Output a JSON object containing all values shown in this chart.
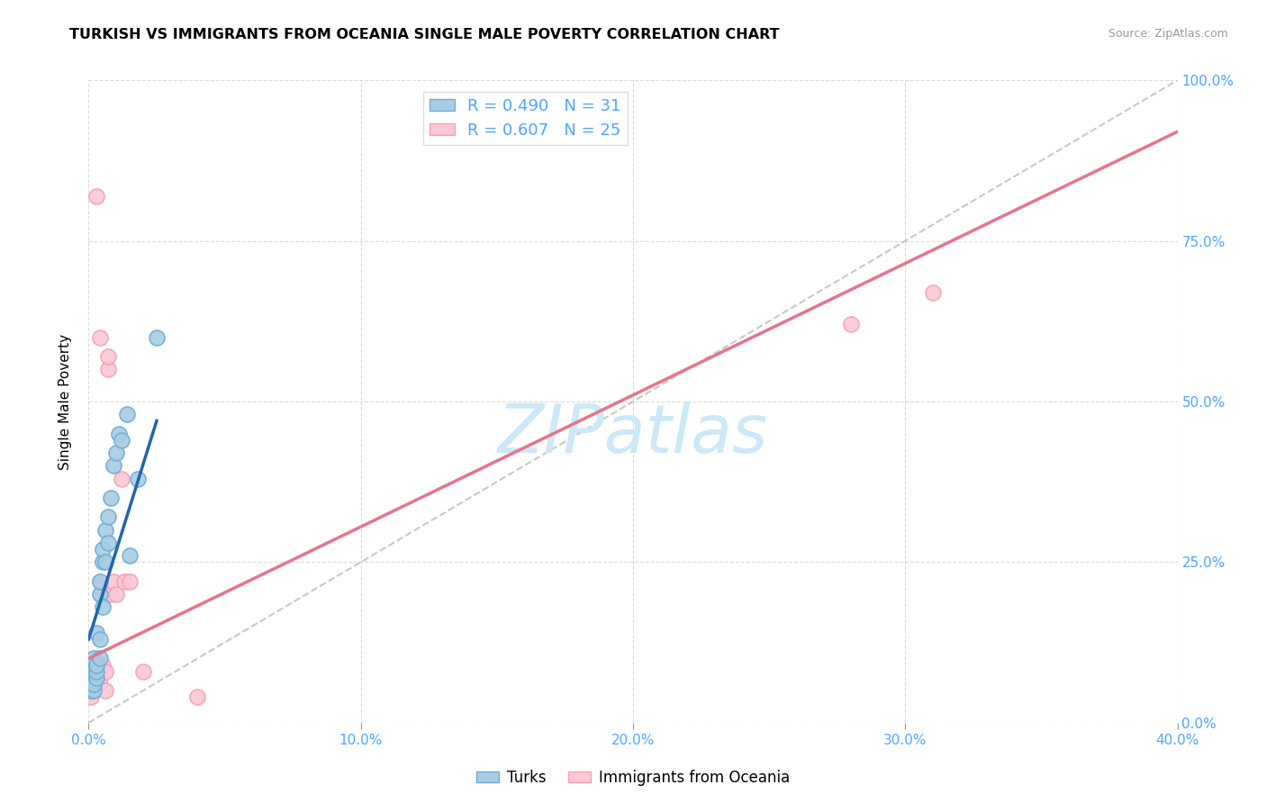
{
  "title": "TURKISH VS IMMIGRANTS FROM OCEANIA SINGLE MALE POVERTY CORRELATION CHART",
  "source": "Source: ZipAtlas.com",
  "xlabel_ticks": [
    "0.0%",
    "10.0%",
    "20.0%",
    "30.0%",
    "40.0%"
  ],
  "xlabel_tick_vals": [
    0.0,
    0.1,
    0.2,
    0.3,
    0.4
  ],
  "ylabel": "Single Male Poverty",
  "ylabel_ticks": [
    "0.0%",
    "25.0%",
    "50.0%",
    "75.0%",
    "100.0%"
  ],
  "ylabel_tick_vals": [
    0.0,
    0.25,
    0.5,
    0.75,
    1.0
  ],
  "xlim": [
    0.0,
    0.4
  ],
  "ylim": [
    0.0,
    1.0
  ],
  "turks_scatter_x": [
    0.001,
    0.001,
    0.001,
    0.002,
    0.002,
    0.002,
    0.002,
    0.003,
    0.003,
    0.003,
    0.003,
    0.004,
    0.004,
    0.004,
    0.004,
    0.005,
    0.005,
    0.005,
    0.006,
    0.006,
    0.007,
    0.007,
    0.008,
    0.009,
    0.01,
    0.011,
    0.012,
    0.014,
    0.015,
    0.018,
    0.025
  ],
  "turks_scatter_y": [
    0.05,
    0.06,
    0.08,
    0.05,
    0.06,
    0.08,
    0.1,
    0.07,
    0.08,
    0.09,
    0.14,
    0.1,
    0.13,
    0.2,
    0.22,
    0.18,
    0.25,
    0.27,
    0.25,
    0.3,
    0.28,
    0.32,
    0.35,
    0.4,
    0.42,
    0.45,
    0.44,
    0.48,
    0.26,
    0.38,
    0.6
  ],
  "oceania_scatter_x": [
    0.001,
    0.001,
    0.002,
    0.002,
    0.003,
    0.003,
    0.004,
    0.004,
    0.004,
    0.005,
    0.005,
    0.006,
    0.006,
    0.007,
    0.007,
    0.008,
    0.009,
    0.01,
    0.012,
    0.013,
    0.015,
    0.02,
    0.04,
    0.28,
    0.31
  ],
  "oceania_scatter_y": [
    0.04,
    0.06,
    0.05,
    0.08,
    0.06,
    0.82,
    0.07,
    0.22,
    0.6,
    0.09,
    0.2,
    0.05,
    0.08,
    0.55,
    0.57,
    0.2,
    0.22,
    0.2,
    0.38,
    0.22,
    0.22,
    0.08,
    0.04,
    0.62,
    0.67
  ],
  "turks_color": "#6baed6",
  "turks_color_fill": "#a8cce4",
  "oceania_color": "#fa9fb5",
  "oceania_color_fill": "#fbc8d5",
  "turks_R": 0.49,
  "turks_N": 31,
  "oceania_R": 0.607,
  "oceania_N": 25,
  "legend_label_turks": "Turks",
  "legend_label_oceania": "Immigrants from Oceania",
  "diagonal_color": "#bbbbbb",
  "trend_color_turks": "#2166ac",
  "trend_color_oceania": "#e8748a",
  "watermark": "ZIPatlas",
  "watermark_color": "#cde8f7",
  "right_ylabel_color": "#4da6ff",
  "title_fontsize": 11.5,
  "source_fontsize": 9,
  "turks_line_x0": 0.0,
  "turks_line_y0": 0.13,
  "turks_line_x1": 0.025,
  "turks_line_y1": 0.47,
  "oceania_line_x0": 0.0,
  "oceania_line_y0": 0.1,
  "oceania_line_x1": 0.4,
  "oceania_line_y1": 0.92
}
